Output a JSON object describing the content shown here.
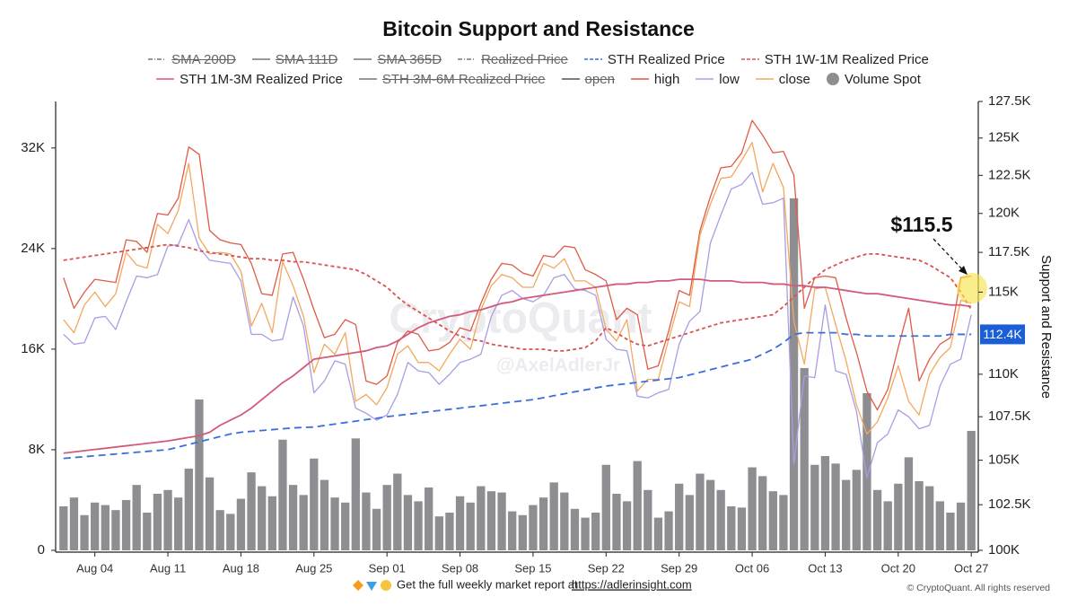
{
  "chart_data": {
    "type": "line",
    "title": "Bitcoin Support and Resistance",
    "y2_label": "Support and Resistance",
    "watermark": "CryptoQuant",
    "watermark_author": "@AxelAdlerJr",
    "annotation": "$115.5",
    "badge": {
      "value": 112400,
      "label": "112.4K"
    },
    "footer_text": "Get the full weekly market report at",
    "footer_link": "https://adlerinsight.com",
    "copyright": "© CryptoQuant. All rights reserved",
    "categories": [
      null,
      null,
      null,
      "Aug 04",
      null,
      null,
      null,
      null,
      null,
      null,
      "Aug 11",
      null,
      null,
      null,
      null,
      null,
      null,
      "Aug 18",
      null,
      null,
      null,
      null,
      null,
      null,
      "Aug 25",
      null,
      null,
      null,
      null,
      null,
      null,
      "Sep 01",
      null,
      null,
      null,
      null,
      null,
      null,
      "Sep 08",
      null,
      null,
      null,
      null,
      null,
      null,
      "Sep 15",
      null,
      null,
      null,
      null,
      null,
      null,
      "Sep 22",
      null,
      null,
      null,
      null,
      null,
      null,
      "Sep 29",
      null,
      null,
      null,
      null,
      null,
      null,
      "Oct 06",
      null,
      null,
      null,
      null,
      null,
      null,
      "Oct 13",
      null,
      null,
      null,
      null,
      null,
      null,
      "Oct 20",
      null,
      null,
      null,
      null,
      null,
      null,
      "Oct 27"
    ],
    "ylim": [
      0,
      35700
    ],
    "yticks": [
      0,
      {
        "value": 8000,
        "label": "8K"
      },
      {
        "value": 16000,
        "label": "16K"
      },
      {
        "value": 24000,
        "label": "24K"
      },
      {
        "value": 32000,
        "label": "32K"
      }
    ],
    "y2lim": [
      100000,
      127500
    ],
    "y2log": true,
    "y2ticks": [
      {
        "value": 100000,
        "label": "100K"
      },
      {
        "value": 102500,
        "label": "102.5K"
      },
      {
        "value": 105000,
        "label": "105K"
      },
      {
        "value": 107500,
        "label": "107.5K"
      },
      {
        "value": 110000,
        "label": "110K"
      },
      {
        "value": 115000,
        "label": "115K"
      },
      {
        "value": 117500,
        "label": "117.5K"
      },
      {
        "value": 120000,
        "label": "120K"
      },
      {
        "value": 122500,
        "label": "122.5K"
      },
      {
        "value": 125000,
        "label": "125K"
      },
      {
        "value": 127500,
        "label": "127.5K"
      }
    ],
    "grid": false,
    "series": [
      {
        "name": "SMA 200D",
        "color": "#777777",
        "style": "dashdot",
        "hidden": true,
        "axis": "y2"
      },
      {
        "name": "SMA 111D",
        "color": "#777777",
        "style": "solid",
        "hidden": true,
        "axis": "y2"
      },
      {
        "name": "SMA 365D",
        "color": "#777777",
        "style": "solid",
        "hidden": true,
        "axis": "y2"
      },
      {
        "name": "Realized Price",
        "color": "#777777",
        "style": "dashdot",
        "hidden": true,
        "axis": "y2"
      },
      {
        "name": "STH Realized Price",
        "color": "#3b6fd8",
        "style": "dashed",
        "axis": "y2",
        "type": "line",
        "values": [
          105100,
          105150,
          105200,
          105250,
          105300,
          105350,
          105400,
          105450,
          105500,
          105550,
          105600,
          105750,
          105900,
          106050,
          106200,
          106350,
          106500,
          106600,
          106650,
          106700,
          106750,
          106800,
          106850,
          106880,
          106900,
          106990,
          107070,
          107160,
          107240,
          107330,
          107410,
          107500,
          107570,
          107640,
          107710,
          107790,
          107860,
          107930,
          108000,
          108070,
          108140,
          108210,
          108290,
          108360,
          108430,
          108500,
          108610,
          108730,
          108840,
          108960,
          109070,
          109190,
          109300,
          109370,
          109440,
          109510,
          109590,
          109660,
          109730,
          109800,
          109960,
          110110,
          110270,
          110430,
          110590,
          110740,
          110900,
          111200,
          111500,
          111900,
          112400,
          112500,
          112500,
          112500,
          112500,
          112400,
          112400,
          112300,
          112300,
          112300,
          112300,
          112300,
          112300,
          112300,
          112300,
          112400,
          112400,
          112400
        ]
      },
      {
        "name": "STH 1W-1M Realized Price",
        "color": "#d9534f",
        "style": "dotted",
        "axis": "y2",
        "type": "line",
        "values": [
          117000,
          117100,
          117200,
          117300,
          117400,
          117500,
          117600,
          117700,
          117800,
          117900,
          118000,
          117900,
          117800,
          117600,
          117500,
          117400,
          117300,
          117200,
          117100,
          117100,
          117000,
          117000,
          116900,
          116900,
          116800,
          116700,
          116600,
          116500,
          116400,
          116100,
          115700,
          115300,
          114700,
          114200,
          113800,
          113400,
          113000,
          112600,
          112300,
          112100,
          112000,
          111800,
          111700,
          111600,
          111500,
          111500,
          111500,
          111400,
          111400,
          111500,
          111600,
          112000,
          112800,
          112500,
          112100,
          111800,
          111700,
          111900,
          112100,
          112300,
          112500,
          112700,
          112900,
          113100,
          113200,
          113300,
          113400,
          113500,
          113600,
          114100,
          114700,
          115300,
          115900,
          116400,
          116700,
          117000,
          117200,
          117400,
          117400,
          117300,
          117200,
          117100,
          117000,
          116700,
          116300,
          115900,
          115000,
          113900
        ]
      },
      {
        "name": "STH 1M-3M Realized Price",
        "color": "#d45a7a",
        "style": "solid",
        "axis": "y2",
        "type": "line",
        "values": [
          105400,
          105470,
          105540,
          105610,
          105680,
          105750,
          105820,
          105890,
          105960,
          106030,
          106100,
          106200,
          106300,
          106400,
          106600,
          107000,
          107300,
          107600,
          108000,
          108500,
          109000,
          109500,
          109900,
          110400,
          110900,
          111000,
          111100,
          111200,
          111300,
          111400,
          111600,
          111700,
          112000,
          112400,
          112800,
          113100,
          113300,
          113500,
          113600,
          113800,
          113900,
          114100,
          114300,
          114400,
          114600,
          114700,
          114800,
          114900,
          115000,
          115100,
          115200,
          115300,
          115400,
          115500,
          115500,
          115600,
          115600,
          115700,
          115700,
          115800,
          115800,
          115800,
          115700,
          115700,
          115700,
          115600,
          115600,
          115600,
          115500,
          115500,
          115400,
          115400,
          115300,
          115300,
          115200,
          115100,
          115000,
          114900,
          114900,
          114800,
          114700,
          114600,
          114500,
          114400,
          114300,
          114200,
          114200,
          114100
        ]
      },
      {
        "name": "STH 3M-6M Realized Price",
        "color": "#777777",
        "style": "solid",
        "hidden": true,
        "axis": "y2"
      },
      {
        "name": "open",
        "color": "#555555",
        "style": "solid",
        "hidden": true,
        "axis": "y2"
      },
      {
        "name": "high",
        "color": "#e05a47",
        "style": "solid",
        "axis": "y2",
        "type": "line",
        "values": [
          115900,
          114000,
          115000,
          115800,
          115700,
          115600,
          118300,
          118200,
          117500,
          120000,
          119900,
          121000,
          124400,
          123900,
          118900,
          118300,
          118100,
          118000,
          116800,
          114900,
          114800,
          117400,
          117500,
          115800,
          113900,
          112200,
          112400,
          113300,
          113000,
          109600,
          109400,
          109900,
          111900,
          112600,
          112400,
          111400,
          111500,
          111900,
          112800,
          112600,
          114300,
          115800,
          116800,
          116700,
          116200,
          116000,
          117300,
          117200,
          117900,
          117800,
          116400,
          116100,
          115700,
          113300,
          114000,
          113600,
          110300,
          110500,
          112600,
          115100,
          114800,
          118900,
          121100,
          123000,
          123100,
          124000,
          126200,
          125200,
          124000,
          124100,
          122500,
          114000,
          115900,
          116000,
          115900,
          113400,
          111300,
          109000,
          107900,
          109100,
          111600,
          114000,
          109600,
          110900,
          111800,
          112200,
          115900,
          116000
        ]
      },
      {
        "name": "low",
        "color": "#a99de3",
        "style": "solid",
        "axis": "y2",
        "type": "line",
        "values": [
          112400,
          111800,
          111900,
          113400,
          113500,
          112700,
          114400,
          116000,
          115900,
          116100,
          117900,
          118000,
          119600,
          117800,
          117000,
          116900,
          116800,
          115700,
          112400,
          112400,
          112000,
          112100,
          114700,
          112900,
          108900,
          109600,
          110800,
          110600,
          108000,
          107700,
          107300,
          107600,
          108800,
          110700,
          110200,
          110100,
          109400,
          110000,
          110700,
          110900,
          111200,
          113500,
          114800,
          115100,
          114600,
          114400,
          114800,
          115900,
          116100,
          115200,
          115100,
          114800,
          112100,
          111500,
          111400,
          108700,
          108600,
          108900,
          109100,
          111800,
          113200,
          113800,
          118100,
          119900,
          121600,
          121900,
          122700,
          120600,
          120700,
          121000,
          104800,
          109900,
          109800,
          114200,
          110200,
          110000,
          107800,
          104000,
          106000,
          106500,
          107900,
          107500,
          106800,
          107000,
          109300,
          110600,
          110900,
          113600
        ]
      },
      {
        "name": "close",
        "color": "#f2a85e",
        "style": "solid",
        "axis": "y2",
        "type": "line",
        "values": [
          113300,
          112500,
          114200,
          115000,
          114100,
          114900,
          117500,
          116700,
          116500,
          119300,
          118700,
          120200,
          123300,
          118400,
          117400,
          117500,
          117400,
          116300,
          112900,
          114300,
          112500,
          116900,
          115400,
          113500,
          110100,
          111800,
          111200,
          112500,
          108400,
          108800,
          108200,
          109200,
          111200,
          111700,
          110700,
          110700,
          110200,
          111200,
          112100,
          111500,
          113900,
          115400,
          116100,
          115900,
          115300,
          115300,
          116800,
          116500,
          117100,
          115700,
          115700,
          115300,
          112700,
          112000,
          113300,
          109000,
          109700,
          109700,
          112100,
          114400,
          114100,
          118600,
          120600,
          122300,
          122400,
          123500,
          124700,
          121400,
          123300,
          121700,
          113200,
          110600,
          115200,
          115300,
          113000,
          110800,
          108200,
          106500,
          107200,
          108600,
          110500,
          108400,
          107600,
          110000,
          111000,
          111600,
          114500,
          114300
        ]
      },
      {
        "name": "Volume Spot",
        "color": "#8d8d92",
        "type": "bar",
        "values": [
          3500,
          4200,
          2800,
          3800,
          3600,
          3200,
          4000,
          5200,
          3000,
          4500,
          4800,
          4200,
          6500,
          12000,
          5800,
          3200,
          2900,
          4100,
          6200,
          5100,
          4300,
          8800,
          5200,
          4400,
          7300,
          5600,
          4200,
          3800,
          8900,
          4600,
          3300,
          5200,
          6100,
          4400,
          3900,
          5000,
          2700,
          3000,
          4300,
          3800,
          5100,
          4700,
          4600,
          3100,
          2800,
          3600,
          4200,
          5400,
          4600,
          3300,
          2600,
          3000,
          6800,
          4500,
          3900,
          7100,
          4800,
          2600,
          3100,
          5300,
          4400,
          6100,
          5600,
          4800,
          3500,
          3400,
          6600,
          5900,
          4700,
          4400,
          28000,
          14500,
          6800,
          7500,
          6900,
          5600,
          6400,
          12500,
          4800,
          3900,
          5300,
          7400,
          5500,
          5100,
          3900,
          3000,
          3800,
          9500
        ]
      }
    ]
  }
}
